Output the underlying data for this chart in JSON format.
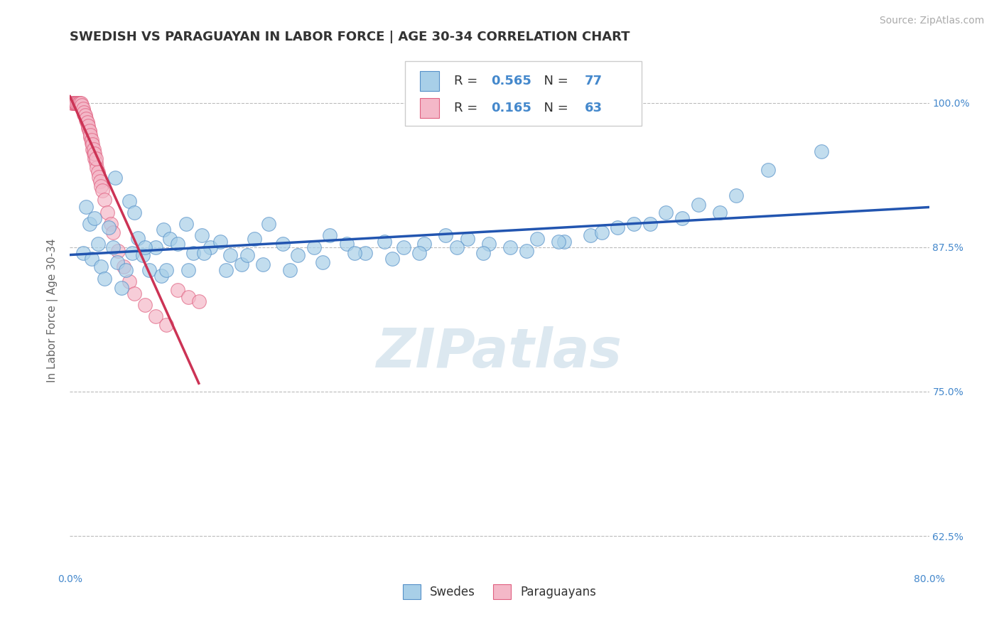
{
  "title": "SWEDISH VS PARAGUAYAN IN LABOR FORCE | AGE 30-34 CORRELATION CHART",
  "source": "Source: ZipAtlas.com",
  "ylabel": "In Labor Force | Age 30-34",
  "xlim": [
    0.0,
    80.0
  ],
  "ylim": [
    0.595,
    1.045
  ],
  "blue_color": "#a8cfe8",
  "pink_color": "#f4b8c8",
  "blue_edge": "#5590c8",
  "pink_edge": "#e06080",
  "trend_blue": "#2255b0",
  "trend_pink": "#cc3355",
  "legend_R_blue": "0.565",
  "legend_N_blue": "77",
  "legend_R_pink": "0.165",
  "legend_N_pink": "63",
  "watermark": "ZIPatlas",
  "background": "#ffffff",
  "grid_color": "#bbbbbb",
  "title_color": "#333333",
  "axis_label_color": "#666666",
  "tick_color": "#4488cc",
  "title_fontsize": 13,
  "source_fontsize": 10,
  "axis_label_fontsize": 11,
  "tick_label_fontsize": 10,
  "legend_fontsize": 13,
  "swedish_x": [
    1.2,
    1.5,
    1.8,
    2.0,
    2.3,
    2.6,
    2.9,
    3.2,
    3.6,
    4.0,
    4.4,
    4.8,
    5.2,
    5.8,
    6.3,
    6.8,
    7.4,
    8.0,
    8.7,
    9.3,
    10.0,
    10.8,
    11.5,
    12.3,
    13.1,
    14.0,
    14.9,
    16.0,
    17.2,
    18.5,
    19.8,
    21.2,
    22.7,
    24.2,
    25.8,
    27.5,
    29.3,
    31.1,
    33.0,
    35.0,
    37.0,
    39.0,
    41.0,
    43.5,
    46.0,
    48.5,
    51.0,
    54.0,
    57.0,
    60.5,
    4.2,
    5.5,
    6.0,
    7.0,
    8.5,
    9.0,
    11.0,
    12.5,
    14.5,
    16.5,
    18.0,
    20.5,
    23.5,
    26.5,
    30.0,
    32.5,
    36.0,
    38.5,
    42.5,
    45.5,
    49.5,
    52.5,
    55.5,
    58.5,
    62.0,
    65.0,
    70.0
  ],
  "swedish_y": [
    0.87,
    0.91,
    0.895,
    0.865,
    0.9,
    0.878,
    0.858,
    0.848,
    0.892,
    0.875,
    0.862,
    0.84,
    0.855,
    0.87,
    0.883,
    0.868,
    0.855,
    0.875,
    0.89,
    0.882,
    0.878,
    0.895,
    0.87,
    0.885,
    0.875,
    0.88,
    0.868,
    0.86,
    0.882,
    0.895,
    0.878,
    0.868,
    0.875,
    0.885,
    0.878,
    0.87,
    0.88,
    0.875,
    0.878,
    0.885,
    0.882,
    0.878,
    0.875,
    0.882,
    0.88,
    0.885,
    0.892,
    0.895,
    0.9,
    0.905,
    0.935,
    0.915,
    0.905,
    0.875,
    0.85,
    0.855,
    0.855,
    0.87,
    0.855,
    0.868,
    0.86,
    0.855,
    0.862,
    0.87,
    0.865,
    0.87,
    0.875,
    0.87,
    0.872,
    0.88,
    0.888,
    0.895,
    0.905,
    0.912,
    0.92,
    0.942,
    0.958
  ],
  "paraguayan_x": [
    0.2,
    0.3,
    0.4,
    0.5,
    0.6,
    0.7,
    0.8,
    0.9,
    1.0,
    1.1,
    1.2,
    1.3,
    1.4,
    1.5,
    1.6,
    1.7,
    1.8,
    1.9,
    2.0,
    2.1,
    2.2,
    2.3,
    2.4,
    2.5,
    2.6,
    2.7,
    2.8,
    2.9,
    3.0,
    3.2,
    3.5,
    3.8,
    4.0,
    4.5,
    5.0,
    5.5,
    6.0,
    7.0,
    8.0,
    9.0,
    10.0,
    11.0,
    12.0,
    0.5,
    0.6,
    0.7,
    0.8,
    0.9,
    1.0,
    1.1,
    1.2,
    1.3,
    1.4,
    1.5,
    1.6,
    1.7,
    1.8,
    1.9,
    2.0,
    2.1,
    2.2,
    2.3,
    2.4
  ],
  "paraguayan_y": [
    1.0,
    1.0,
    1.0,
    1.0,
    1.0,
    1.0,
    1.0,
    1.0,
    0.998,
    0.996,
    0.993,
    0.99,
    0.988,
    0.985,
    0.982,
    0.978,
    0.975,
    0.97,
    0.965,
    0.96,
    0.956,
    0.952,
    0.948,
    0.944,
    0.94,
    0.936,
    0.932,
    0.928,
    0.924,
    0.916,
    0.905,
    0.895,
    0.888,
    0.872,
    0.858,
    0.845,
    0.835,
    0.825,
    0.815,
    0.808,
    0.838,
    0.832,
    0.828,
    1.0,
    1.0,
    1.0,
    1.0,
    1.0,
    1.0,
    0.998,
    0.995,
    0.992,
    0.989,
    0.986,
    0.983,
    0.98,
    0.976,
    0.972,
    0.968,
    0.964,
    0.96,
    0.956,
    0.952
  ]
}
